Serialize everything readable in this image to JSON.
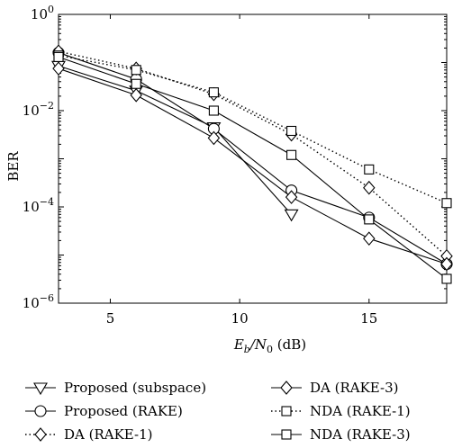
{
  "chart_data": {
    "type": "line",
    "title": "",
    "xlabel": {
      "main": "E",
      "sub1": "b",
      "mid": "/N",
      "sub2": "0",
      "unit": " (dB)"
    },
    "ylabel": "BER",
    "xlim": [
      3,
      18
    ],
    "ylim_log10": [
      -6,
      0
    ],
    "yscale": "log",
    "x_ticks": [
      5,
      10,
      15
    ],
    "y_tick_labels": [
      {
        "base": "10",
        "exp": "0",
        "value": 0
      },
      {
        "base": "10",
        "exp": "−2",
        "value": -2
      },
      {
        "base": "10",
        "exp": "−4",
        "value": -4
      },
      {
        "base": "10",
        "exp": "−6",
        "value": -6
      }
    ],
    "grid": false,
    "legend_placement": "below",
    "series": [
      {
        "name": "Proposed (subspace)",
        "marker": "triangle-down",
        "line": "solid",
        "x": [
          3,
          6,
          9,
          12
        ],
        "y": [
          0.085,
          0.026,
          0.0045,
          7e-05
        ]
      },
      {
        "name": "Proposed (RAKE)",
        "marker": "circle",
        "line": "solid",
        "x": [
          3,
          6,
          9,
          12,
          15,
          18
        ],
        "y": [
          0.16,
          0.045,
          0.0042,
          0.00022,
          6e-05,
          6.5e-06
        ]
      },
      {
        "name": "DA (RAKE-1)",
        "marker": "diamond",
        "line": "dotted",
        "x": [
          3,
          6,
          9,
          12,
          15,
          18
        ],
        "y": [
          0.17,
          0.075,
          0.022,
          0.0032,
          0.00025,
          9.5e-06
        ]
      },
      {
        "name": "DA (RAKE-3)",
        "marker": "diamond",
        "line": "solid",
        "x": [
          3,
          6,
          9,
          12,
          15,
          18
        ],
        "y": [
          0.075,
          0.021,
          0.0027,
          0.00016,
          2.2e-05,
          6.5e-06
        ]
      },
      {
        "name": "NDA (RAKE-1)",
        "marker": "square",
        "line": "dotted",
        "x": [
          3,
          6,
          9,
          12,
          15,
          18
        ],
        "y": [
          0.14,
          0.07,
          0.024,
          0.0038,
          0.0006,
          0.00012
        ]
      },
      {
        "name": "NDA (RAKE-3)",
        "marker": "square",
        "line": "solid",
        "x": [
          3,
          6,
          9,
          12,
          15,
          18
        ],
        "y": [
          0.13,
          0.036,
          0.01,
          0.0012,
          5.5e-05,
          3.2e-06
        ]
      }
    ]
  }
}
